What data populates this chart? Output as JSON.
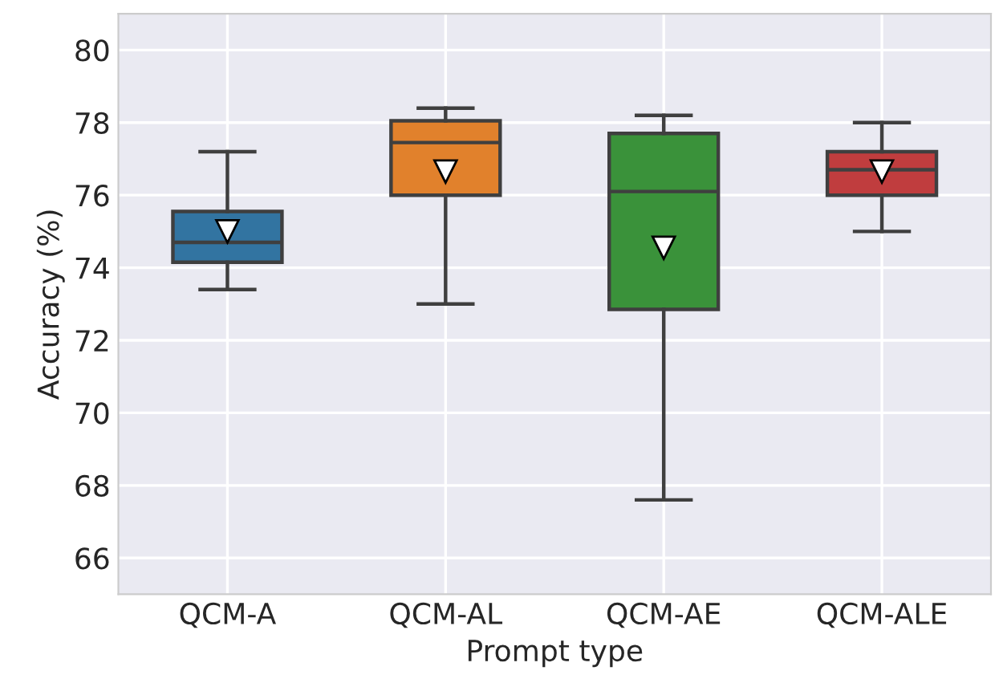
{
  "chart_data": {
    "type": "box",
    "xlabel": "Prompt type",
    "ylabel": "Accuracy (%)",
    "categories": [
      "QCM-A",
      "QCM-AL",
      "QCM-AE",
      "QCM-ALE"
    ],
    "colors": [
      "#3274a1",
      "#e1812c",
      "#3a923a",
      "#c03d3e"
    ],
    "boxes": [
      {
        "low": 73.4,
        "q1": 74.15,
        "median": 74.7,
        "q3": 75.55,
        "high": 77.2,
        "mean": 75.0
      },
      {
        "low": 73.0,
        "q1": 76.0,
        "median": 77.45,
        "q3": 78.05,
        "high": 78.4,
        "mean": 76.65
      },
      {
        "low": 67.6,
        "q1": 72.85,
        "median": 76.1,
        "q3": 77.7,
        "high": 78.2,
        "mean": 74.55
      },
      {
        "low": 75.0,
        "q1": 76.0,
        "median": 76.7,
        "q3": 77.2,
        "high": 78.0,
        "mean": 76.65
      }
    ],
    "ylim": [
      65,
      81
    ],
    "yticks": [
      66,
      68,
      70,
      72,
      74,
      76,
      78,
      80
    ],
    "grid": true
  }
}
